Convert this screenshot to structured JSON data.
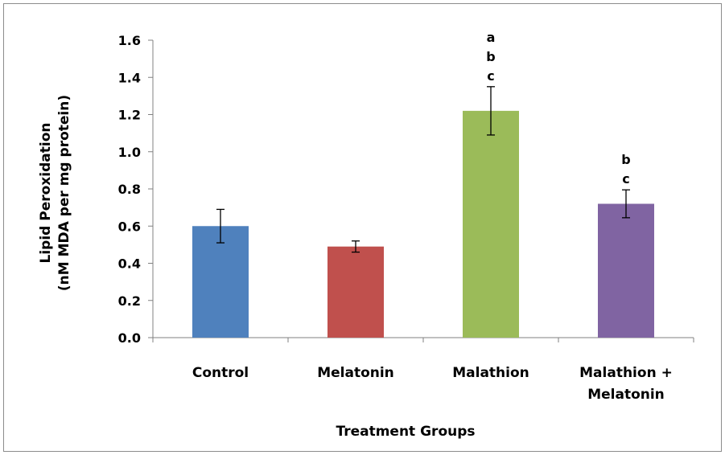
{
  "chart_data": {
    "type": "bar",
    "categories": [
      "Control",
      "Melatonin",
      "Malathion",
      "Malathion + Melatonin"
    ],
    "category_lines": [
      [
        "Control"
      ],
      [
        "Melatonin"
      ],
      [
        "Malathion"
      ],
      [
        "Malathion +",
        "Melatonin"
      ]
    ],
    "values": [
      0.6,
      0.49,
      1.22,
      0.72
    ],
    "errors": [
      0.09,
      0.03,
      0.13,
      0.075
    ],
    "significance": [
      [],
      [],
      [
        "a",
        "b",
        "c"
      ],
      [
        "b",
        "c"
      ]
    ],
    "colors": [
      "#4f81bd",
      "#c0504d",
      "#9bbb59",
      "#8064a2"
    ],
    "xlabel": "Treatment Groups",
    "ylabel_lines": [
      "Lipid Peroxidation",
      "(nM MDA  per mg protein)"
    ],
    "ylim": [
      0,
      1.6
    ],
    "yticks": [
      "0.0",
      "0.2",
      "0.4",
      "0.6",
      "0.8",
      "1.0",
      "1.2",
      "1.4",
      "1.6"
    ],
    "grid": false,
    "legend": "none"
  }
}
